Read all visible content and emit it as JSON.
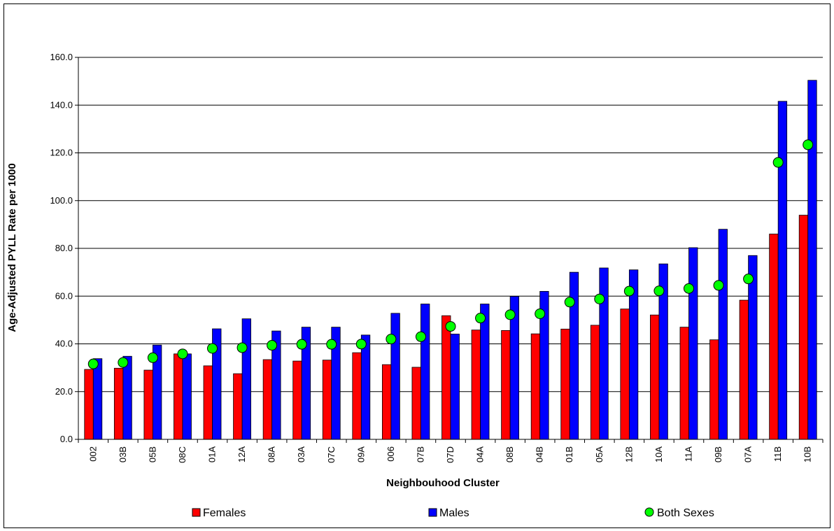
{
  "chart_data": {
    "type": "bar",
    "title": "",
    "xlabel": "Neighbouhood Cluster",
    "ylabel": "Age-Adjusted PYLL Rate per 1000",
    "ylim": [
      0,
      160
    ],
    "yticks": [
      "0.0",
      "20.0",
      "40.0",
      "60.0",
      "80.0",
      "100.0",
      "120.0",
      "140.0",
      "160.0"
    ],
    "grid": true,
    "legend_position": "bottom",
    "categories": [
      "002",
      "03B",
      "05B",
      "08C",
      "01A",
      "12A",
      "08A",
      "03A",
      "07C",
      "09A",
      "006",
      "07B",
      "07D",
      "04A",
      "08B",
      "04B",
      "01B",
      "05A",
      "12B",
      "10A",
      "11A",
      "09B",
      "07A",
      "11B",
      "10B"
    ],
    "series": [
      {
        "name": "Females",
        "kind": "bar",
        "color": "#ff0000",
        "values": [
          29.3,
          29.8,
          29.0,
          35.8,
          30.8,
          27.5,
          33.4,
          32.8,
          33.2,
          36.3,
          31.3,
          30.2,
          51.8,
          45.8,
          45.6,
          44.2,
          46.2,
          47.8,
          54.6,
          52.1,
          47.0,
          41.7,
          58.3,
          86.0,
          93.9
        ]
      },
      {
        "name": "Males",
        "kind": "bar",
        "color": "#0000ff",
        "values": [
          33.8,
          34.8,
          39.5,
          35.8,
          46.3,
          50.5,
          45.4,
          47.0,
          47.0,
          43.7,
          52.8,
          56.7,
          44.1,
          56.7,
          59.9,
          62.0,
          70.0,
          71.8,
          71.0,
          73.5,
          80.3,
          88.0,
          77.0,
          141.6,
          150.4
        ]
      },
      {
        "name": "Both Sexes",
        "kind": "marker",
        "color": "#00ff00",
        "values": [
          31.6,
          32.2,
          34.2,
          35.8,
          38.1,
          38.4,
          39.4,
          39.8,
          39.8,
          39.9,
          42.0,
          43.0,
          47.3,
          50.8,
          52.2,
          52.6,
          57.5,
          58.8,
          62.1,
          62.2,
          63.2,
          64.5,
          67.2,
          116.0,
          123.4
        ]
      }
    ]
  }
}
